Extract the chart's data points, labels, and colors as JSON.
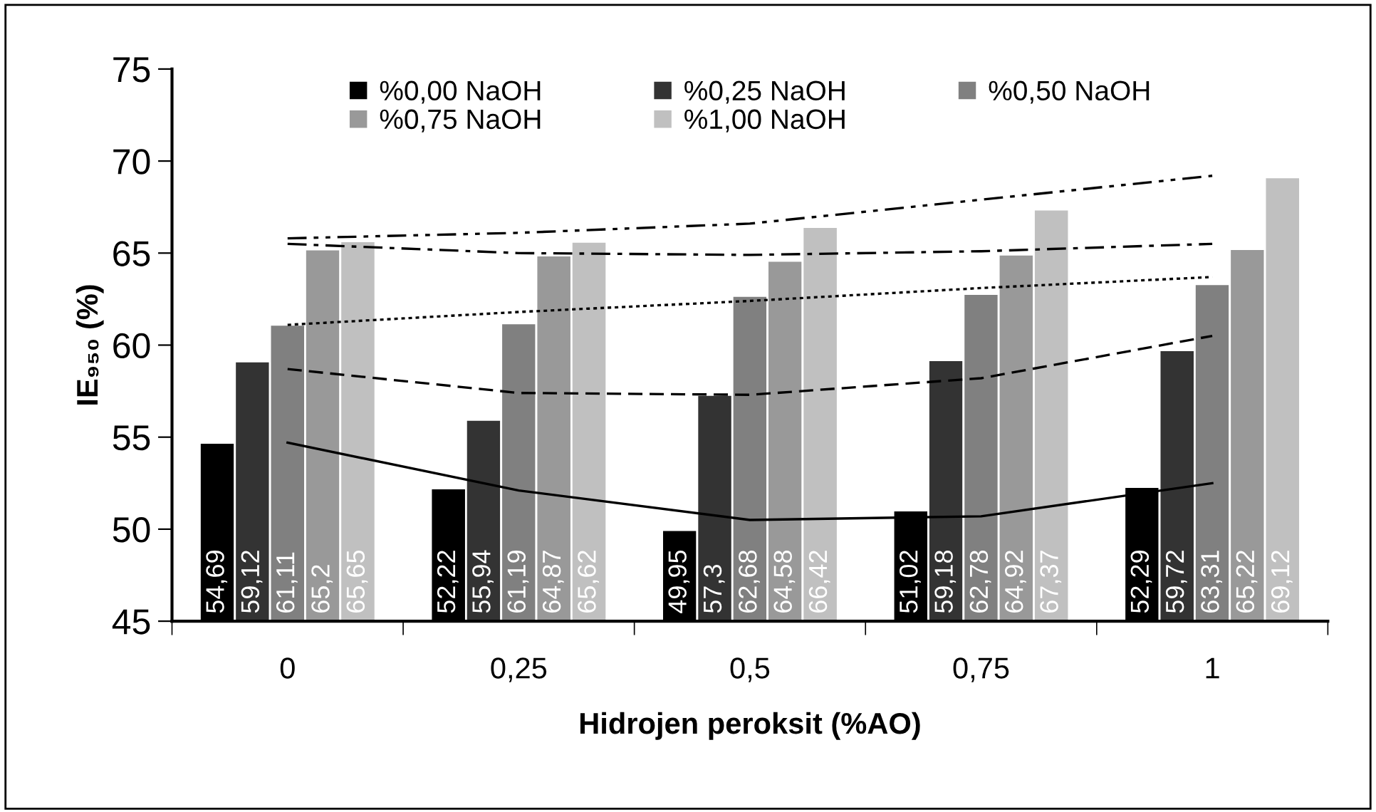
{
  "chart_data": {
    "type": "bar",
    "xlabel": "Hidrojen peroksit (%AO)",
    "ylabel": "IE₉₅₀ (%)",
    "categories": [
      "0",
      "0,25",
      "0,5",
      "0,75",
      "1"
    ],
    "ylim": [
      45,
      75
    ],
    "yticks": [
      45,
      50,
      55,
      60,
      65,
      70,
      75
    ],
    "grid": false,
    "legend": "top",
    "series": [
      {
        "name": "%0,00 NaOH",
        "color": "#000000",
        "values": [
          54.69,
          52.22,
          49.95,
          51.02,
          52.29
        ],
        "value_labels": [
          "54,69",
          "52,22",
          "49,95",
          "51,02",
          "52,29"
        ]
      },
      {
        "name": "%0,25 NaOH",
        "color": "#333333",
        "values": [
          59.12,
          55.94,
          57.3,
          59.18,
          59.72
        ],
        "value_labels": [
          "59,12",
          "55,94",
          "57,3",
          "59,18",
          "59,72"
        ]
      },
      {
        "name": "%0,50 NaOH",
        "color": "#808080",
        "values": [
          61.11,
          61.19,
          62.68,
          62.78,
          63.31
        ],
        "value_labels": [
          "61,11",
          "61,19",
          "62,68",
          "62,78",
          "63,31"
        ]
      },
      {
        "name": "%0,75 NaOH",
        "color": "#999999",
        "values": [
          65.2,
          64.87,
          64.58,
          64.92,
          65.22
        ],
        "value_labels": [
          "65,2",
          "64,87",
          "64,58",
          "64,92",
          "65,22"
        ]
      },
      {
        "name": "%1,00 NaOH",
        "color": "#c0c0c0",
        "values": [
          65.65,
          65.62,
          66.42,
          67.37,
          69.12
        ],
        "value_labels": [
          "65,65",
          "65,62",
          "66,42",
          "67,37",
          "69,12"
        ]
      },
      {
        "type": "line",
        "color": "#000000",
        "line_style": "solid",
        "values": [
          54.7,
          52.1,
          50.5,
          50.7,
          52.5
        ]
      },
      {
        "type": "line",
        "color": "#000000",
        "line_style": "dashed",
        "values": [
          58.7,
          57.4,
          57.3,
          58.2,
          60.5
        ]
      },
      {
        "type": "line",
        "color": "#000000",
        "line_style": "dotted",
        "values": [
          61.1,
          61.8,
          62.4,
          63.1,
          63.7
        ]
      },
      {
        "type": "line",
        "color": "#000000",
        "line_style": "dashdot",
        "values": [
          65.5,
          65.0,
          64.9,
          65.1,
          65.5
        ]
      },
      {
        "type": "line",
        "color": "#000000",
        "line_style": "dashdotdot",
        "values": [
          65.8,
          66.1,
          66.6,
          67.9,
          69.2
        ]
      }
    ]
  }
}
